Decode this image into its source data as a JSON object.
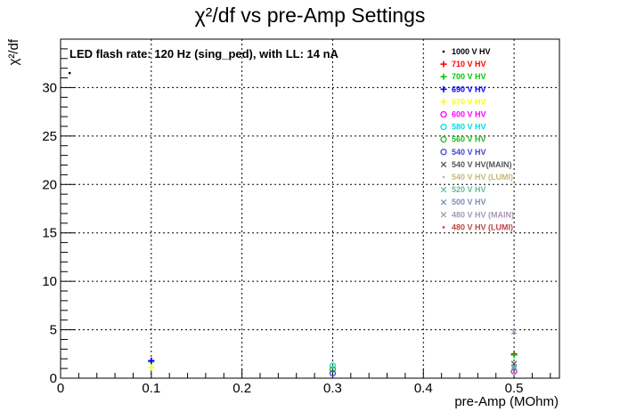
{
  "chart_data": {
    "type": "scatter",
    "title": "χ²/df vs pre-Amp Settings",
    "xlabel": "pre-Amp (MOhm)",
    "ylabel": "χ²/df",
    "xlim": [
      0,
      0.55
    ],
    "ylim": [
      0,
      35
    ],
    "x_ticks": [
      "0",
      "0.1",
      "0.2",
      "0.3",
      "0.4",
      "0.5"
    ],
    "y_ticks": [
      "0",
      "5",
      "10",
      "15",
      "20",
      "25",
      "30"
    ],
    "grid": true,
    "legend_position": "top-right",
    "annotation": "LED flash rate: 120 Hz  (sing_ped), with LL: 14 nA",
    "series": [
      {
        "name": "1000 V HV",
        "marker": "dot",
        "color": "#000000",
        "points": [
          [
            0.01,
            31.5
          ]
        ]
      },
      {
        "name": "710 V HV",
        "marker": "plus",
        "color": "#ff0000",
        "points": [
          [
            0.1,
            1.8
          ],
          [
            0.5,
            2.5
          ]
        ]
      },
      {
        "name": "700 V HV",
        "marker": "plus",
        "color": "#00cc00",
        "points": [
          [
            0.1,
            1.7
          ],
          [
            0.5,
            2.4
          ]
        ]
      },
      {
        "name": "690 V HV",
        "marker": "plus",
        "color": "#0000ff",
        "points": [
          [
            0.1,
            1.8
          ]
        ]
      },
      {
        "name": "670 V HV",
        "marker": "plus",
        "color": "#ffff00",
        "points": [
          [
            0.1,
            1.1
          ]
        ]
      },
      {
        "name": "600 V HV",
        "marker": "circle",
        "color": "#ff00ff",
        "points": [
          [
            0.5,
            0.7
          ]
        ]
      },
      {
        "name": "580 V HV",
        "marker": "circle",
        "color": "#00dddd",
        "points": [
          [
            0.3,
            1.3
          ]
        ]
      },
      {
        "name": "560 V HV",
        "marker": "circle",
        "color": "#22bb22",
        "points": [
          [
            0.3,
            0.9
          ]
        ]
      },
      {
        "name": "540 V HV",
        "marker": "circle",
        "color": "#4444cc",
        "points": [
          [
            0.3,
            0.5
          ]
        ]
      },
      {
        "name": "540 V HV(MAIN)",
        "marker": "cross",
        "color": "#555555",
        "points": [
          [
            0.5,
            1.5
          ]
        ]
      },
      {
        "name": "540 V HV (LUMI)",
        "marker": "dot",
        "color": "#c8b878",
        "points": [
          [
            0.5,
            0.4
          ]
        ]
      },
      {
        "name": "520 V HV",
        "marker": "cross",
        "color": "#66bb99",
        "points": [
          [
            0.5,
            1.2
          ]
        ]
      },
      {
        "name": "500 V HV",
        "marker": "cross",
        "color": "#7b8fb8",
        "points": [
          [
            0.5,
            1.0
          ]
        ]
      },
      {
        "name": "480 V HV (MAIN)",
        "marker": "cross",
        "color": "#a898b8",
        "points": [
          [
            0.5,
            4.8
          ]
        ]
      },
      {
        "name": "480 V HV (LUMI)",
        "marker": "dot",
        "color": "#c04444",
        "points": [
          [
            0.5,
            2.6
          ]
        ]
      }
    ]
  }
}
